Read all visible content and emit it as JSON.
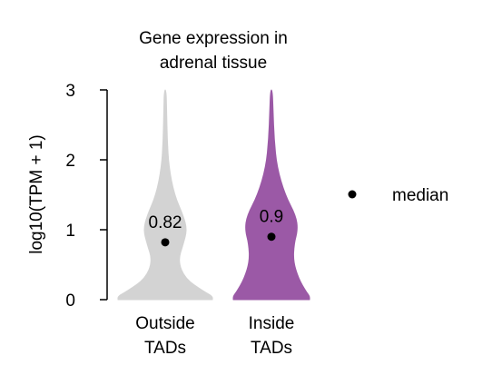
{
  "chart_data": {
    "type": "violin",
    "title_lines": [
      "Gene expression in",
      "adrenal tissue"
    ],
    "ylabel": "log10(TPM + 1)",
    "ylim": [
      0,
      3
    ],
    "yticks": [
      "0",
      "1",
      "2",
      "3"
    ],
    "grid": false,
    "legend": {
      "label": "median",
      "placement": "right"
    },
    "categories": [
      {
        "label_lines": [
          "Outside",
          "TADs"
        ],
        "median": 0.82,
        "median_label": "0.82",
        "color": "#d3d3d3"
      },
      {
        "label_lines": [
          "Inside",
          "TADs"
        ],
        "median": 0.9,
        "median_label": "0.9",
        "color": "#9b59a6"
      }
    ]
  }
}
